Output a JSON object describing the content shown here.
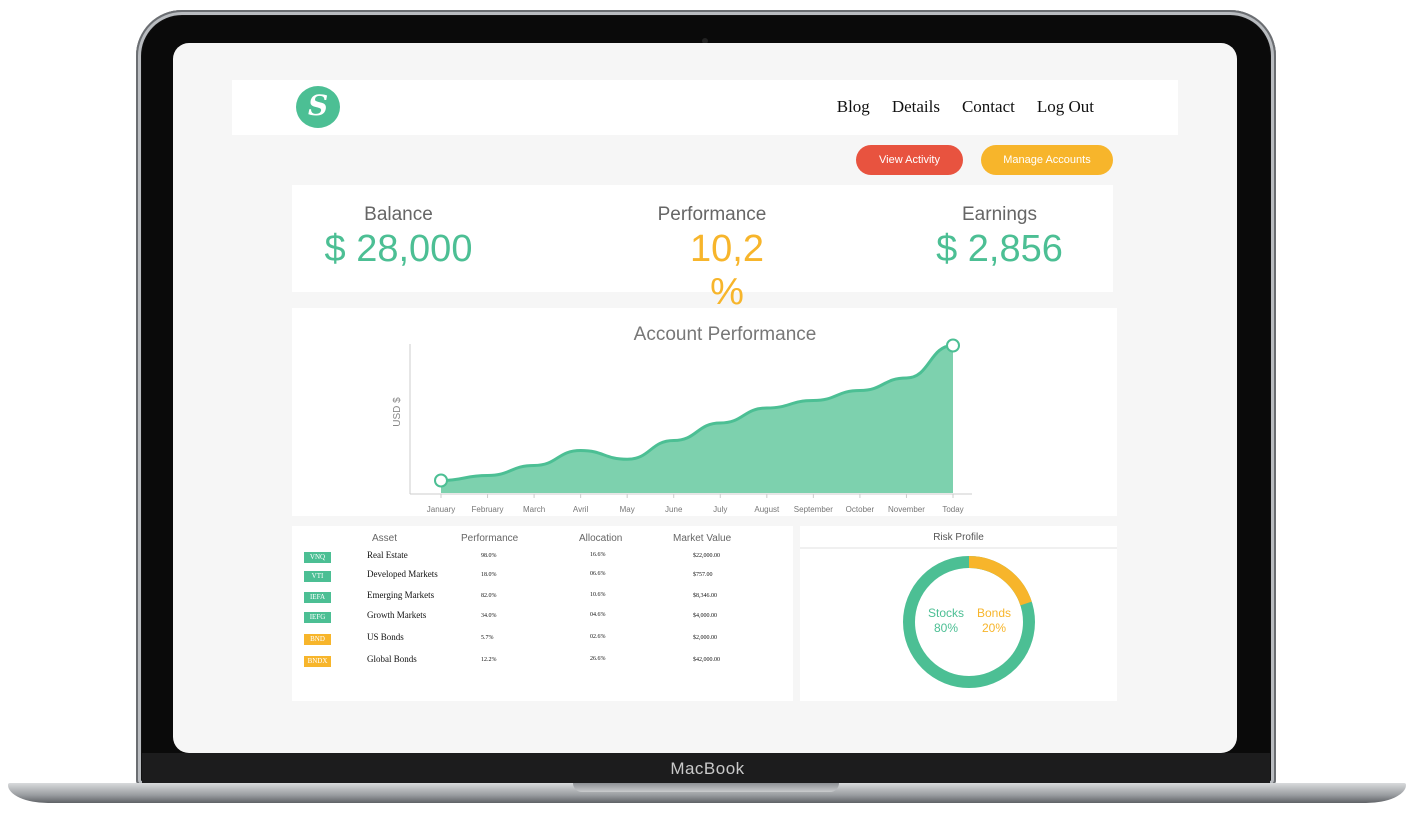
{
  "device": {
    "brand": "MacBook"
  },
  "nav": {
    "logo_letter": "S",
    "links": [
      "Blog",
      "Details",
      "Contact",
      "Log Out"
    ]
  },
  "actions": {
    "view_activity": "View Activity",
    "manage_accounts": "Manage Accounts"
  },
  "stats": [
    {
      "label": "Balance",
      "value": "$ 28,000",
      "color": "#4cbf94"
    },
    {
      "label": "Performance",
      "value": "10,2 %",
      "color": "#f7b52b"
    },
    {
      "label": "Earnings",
      "value": "$ 2,856",
      "color": "#4cbf94"
    }
  ],
  "chart_data": {
    "type": "area",
    "title": "Account Performance",
    "ylabel": "USD $",
    "xlabel": "",
    "categories": [
      "January",
      "February",
      "March",
      "Avril",
      "May",
      "June",
      "July",
      "August",
      "September",
      "October",
      "November",
      "Today"
    ],
    "values": [
      10,
      14,
      22,
      34,
      27,
      42,
      56,
      68,
      74,
      82,
      92,
      118
    ],
    "ylim": [
      0,
      120
    ],
    "color": "#7dd1ae",
    "line_color": "#4cbf94",
    "grid": false
  },
  "table": {
    "headers": [
      "Asset",
      "Performance",
      "Allocation",
      "Market Value"
    ],
    "rows": [
      {
        "ticker": "VNQ",
        "asset": "Real Estate",
        "performance": "98.0%",
        "allocation": "16.6%",
        "value": "$22,000.00",
        "type": "stock"
      },
      {
        "ticker": "VTI",
        "asset": "Developed Markets",
        "performance": "18.0%",
        "allocation": "06.6%",
        "value": "$757.00",
        "type": "stock"
      },
      {
        "ticker": "IEFA",
        "asset": "Emerging Markets",
        "performance": "82.0%",
        "allocation": "10.6%",
        "value": "$8,346.00",
        "type": "stock"
      },
      {
        "ticker": "IEFG",
        "asset": "Growth Markets",
        "performance": "34.0%",
        "allocation": "04.6%",
        "value": "$4,000.00",
        "type": "stock"
      },
      {
        "ticker": "BND",
        "asset": "US Bonds",
        "performance": "5.7%",
        "allocation": "02.6%",
        "value": "$2,000.00",
        "type": "bond"
      },
      {
        "ticker": "BNDX",
        "asset": "Global Bonds",
        "performance": "12.2%",
        "allocation": "26.6%",
        "value": "$42,000.00",
        "type": "bond"
      }
    ],
    "stock_color": "#4cbf94",
    "bond_color": "#f7b52b"
  },
  "risk": {
    "title": "Risk Profile",
    "stocks_label": "Stocks",
    "stocks_pct": "80%",
    "bonds_label": "Bonds",
    "bonds_pct": "20%",
    "stocks_value": 80,
    "bonds_value": 20
  }
}
